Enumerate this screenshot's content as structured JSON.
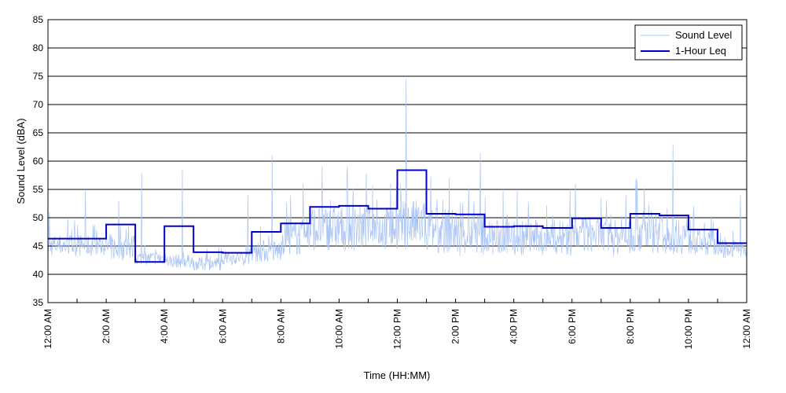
{
  "chart_data": {
    "type": "line",
    "xlabel": "Time (HH:MM)",
    "ylabel": "Sound Level (dBA)",
    "xlim": [
      0,
      24
    ],
    "ylim": [
      35,
      85
    ],
    "y_ticks": [
      35,
      40,
      45,
      50,
      55,
      60,
      65,
      70,
      75,
      80,
      85
    ],
    "x_ticks": [
      0,
      1,
      2,
      3,
      4,
      5,
      6,
      7,
      8,
      9,
      10,
      11,
      12,
      13,
      14,
      15,
      16,
      17,
      18,
      19,
      20,
      21,
      22,
      23,
      24
    ],
    "x_tick_labels": [
      {
        "x": 0,
        "label": "12:00 AM"
      },
      {
        "x": 2,
        "label": "2:00 AM"
      },
      {
        "x": 4,
        "label": "4:00 AM"
      },
      {
        "x": 6,
        "label": "6:00 AM"
      },
      {
        "x": 8,
        "label": "8:00 AM"
      },
      {
        "x": 10,
        "label": "10:00 AM"
      },
      {
        "x": 12,
        "label": "12:00 PM"
      },
      {
        "x": 14,
        "label": "2:00 PM"
      },
      {
        "x": 16,
        "label": "4:00 PM"
      },
      {
        "x": 18,
        "label": "6:00 PM"
      },
      {
        "x": 20,
        "label": "8:00 PM"
      },
      {
        "x": 22,
        "label": "10:00 PM"
      },
      {
        "x": 24,
        "label": "12:00 AM"
      }
    ],
    "grid": "horizontal",
    "legend_position": "top-right",
    "series": [
      {
        "name": "Sound Level",
        "color": "#a9c4f5",
        "style": "thin-line",
        "hourly_profile": [
          {
            "hour": 0,
            "base": 44.5,
            "spread": 2.5,
            "peak": 51
          },
          {
            "hour": 1,
            "base": 44.5,
            "spread": 2.5,
            "peak": 55
          },
          {
            "hour": 2,
            "base": 44,
            "spread": 3,
            "peak": 53
          },
          {
            "hour": 3,
            "base": 42.5,
            "spread": 1.5,
            "peak": 58
          },
          {
            "hour": 4,
            "base": 42,
            "spread": 1.5,
            "peak": 58.5
          },
          {
            "hour": 5,
            "base": 41.5,
            "spread": 1.5,
            "peak": 45
          },
          {
            "hour": 6,
            "base": 42.5,
            "spread": 1.5,
            "peak": 54
          },
          {
            "hour": 7,
            "base": 43.5,
            "spread": 2.5,
            "peak": 61
          },
          {
            "hour": 8,
            "base": 45.5,
            "spread": 4,
            "peak": 56
          },
          {
            "hour": 9,
            "base": 47,
            "spread": 5,
            "peak": 59
          },
          {
            "hour": 10,
            "base": 47,
            "spread": 5,
            "peak": 59
          },
          {
            "hour": 11,
            "base": 47,
            "spread": 5,
            "peak": 56
          },
          {
            "hour": 12,
            "base": 47.5,
            "spread": 5.5,
            "peak": 74.5
          },
          {
            "hour": 13,
            "base": 46.5,
            "spread": 5,
            "peak": 57
          },
          {
            "hour": 14,
            "base": 46,
            "spread": 5,
            "peak": 61.5
          },
          {
            "hour": 15,
            "base": 45.5,
            "spread": 4,
            "peak": 55
          },
          {
            "hour": 16,
            "base": 45.5,
            "spread": 4,
            "peak": 55
          },
          {
            "hour": 17,
            "base": 45.5,
            "spread": 4,
            "peak": 55
          },
          {
            "hour": 18,
            "base": 46,
            "spread": 4,
            "peak": 56
          },
          {
            "hour": 19,
            "base": 45.5,
            "spread": 4,
            "peak": 54
          },
          {
            "hour": 20,
            "base": 46.5,
            "spread": 5,
            "peak": 57
          },
          {
            "hour": 21,
            "base": 46,
            "spread": 4.5,
            "peak": 63
          },
          {
            "hour": 22,
            "base": 45,
            "spread": 3,
            "peak": 52
          },
          {
            "hour": 23,
            "base": 44,
            "spread": 2,
            "peak": 54
          }
        ]
      },
      {
        "name": "1-Hour Leq",
        "color": "#0000cc",
        "style": "step",
        "x": [
          0,
          1,
          2,
          3,
          4,
          5,
          6,
          7,
          8,
          9,
          10,
          11,
          12,
          13,
          14,
          15,
          16,
          17,
          18,
          19,
          20,
          21,
          22,
          23
        ],
        "values": [
          46.3,
          46.3,
          48.8,
          42.2,
          48.5,
          43.9,
          43.8,
          47.5,
          49.0,
          51.9,
          52.1,
          51.6,
          58.4,
          50.7,
          50.6,
          48.4,
          48.5,
          48.2,
          49.9,
          48.2,
          50.7,
          50.4,
          47.9,
          45.5
        ]
      }
    ]
  }
}
